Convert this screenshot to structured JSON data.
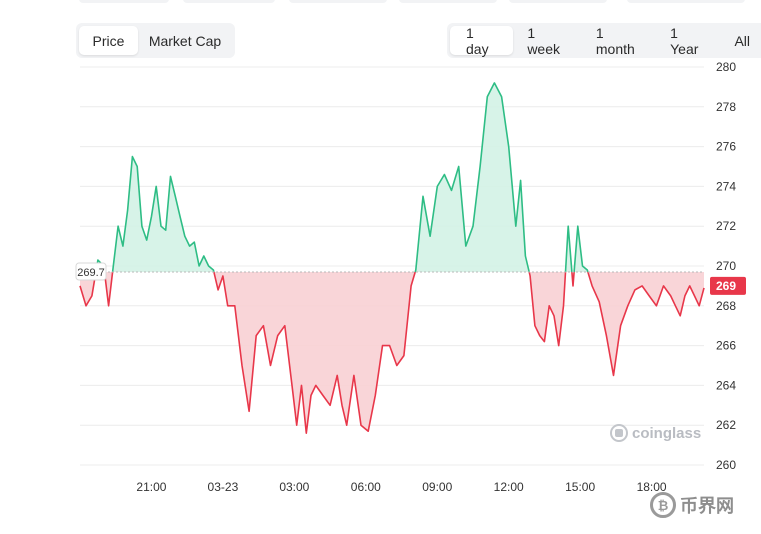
{
  "tabs": {
    "metric": [
      {
        "label": "Price",
        "active": true
      },
      {
        "label": "Market Cap",
        "active": false
      }
    ],
    "range": [
      {
        "label": "1 day",
        "active": true
      },
      {
        "label": "1 week",
        "active": false
      },
      {
        "label": "1 month",
        "active": false
      },
      {
        "label": "1 Year",
        "active": false
      },
      {
        "label": "All",
        "active": false
      }
    ]
  },
  "watermark": "coinglass",
  "brand": "币界网",
  "colors": {
    "up": "#2ebd85",
    "down": "#e8374a",
    "up_fill": "#d3f2e5",
    "down_fill": "#f8d0d4",
    "baseline": "#b8b8b8"
  },
  "chart_data": {
    "type": "area",
    "title": "",
    "xlabel": "",
    "ylabel": "",
    "ylim": [
      260,
      280
    ],
    "yticks": [
      260,
      262,
      264,
      266,
      268,
      270,
      272,
      274,
      276,
      278,
      280
    ],
    "xticks": [
      "21:00",
      "03-23",
      "03:00",
      "06:00",
      "09:00",
      "12:00",
      "15:00",
      "18:00"
    ],
    "xlim": [
      18.0,
      44.2
    ],
    "baseline": 269.7,
    "baseline_label": "269.7",
    "last_value": 269,
    "last_label": "269",
    "grid": true,
    "series": [
      {
        "x": [
          18.0,
          18.25,
          18.5,
          18.75,
          19.0,
          19.2,
          19.4,
          19.6,
          19.8,
          20.0,
          20.2,
          20.4,
          20.6,
          20.8,
          21.0,
          21.2,
          21.4,
          21.6,
          21.8,
          22.0,
          22.2,
          22.4,
          22.6,
          22.8,
          23.0,
          23.2,
          23.4,
          23.6,
          23.8,
          24.0,
          24.2,
          24.5,
          24.8,
          25.1,
          25.4,
          25.7,
          26.0,
          26.3,
          26.6,
          26.9,
          27.1,
          27.3,
          27.5,
          27.7,
          27.9,
          28.2,
          28.5,
          28.8,
          29.0,
          29.2,
          29.5,
          29.8,
          30.1,
          30.4,
          30.7,
          31.0,
          31.3,
          31.6,
          31.9,
          32.1,
          32.4,
          32.7,
          33.0,
          33.3,
          33.6,
          33.9,
          34.2,
          34.5,
          34.8,
          35.1,
          35.4,
          35.7,
          36.0,
          36.3,
          36.5,
          36.7,
          36.9,
          37.1,
          37.3,
          37.5,
          37.7,
          37.9,
          38.1,
          38.3,
          38.5,
          38.7,
          38.9,
          39.1,
          39.3,
          39.5,
          39.8,
          40.1,
          40.4,
          40.7,
          41.0,
          41.3,
          41.6,
          41.9,
          42.2,
          42.5,
          42.8,
          43.0,
          43.2,
          43.4,
          43.6,
          43.8,
          44.0,
          44.2
        ],
        "y": [
          269.0,
          268.0,
          268.5,
          270.3,
          270.0,
          268.0,
          270.0,
          272.0,
          271.0,
          272.8,
          275.5,
          275.0,
          272.0,
          271.3,
          272.5,
          274.0,
          272.0,
          271.8,
          274.5,
          273.5,
          272.5,
          271.5,
          271.0,
          271.2,
          270.0,
          270.5,
          270.0,
          269.8,
          268.8,
          269.5,
          268.0,
          268.0,
          265.0,
          262.7,
          266.5,
          267.0,
          265.0,
          266.5,
          267.0,
          264.0,
          262.0,
          264.0,
          261.6,
          263.5,
          264.0,
          263.5,
          263.0,
          264.5,
          263.0,
          262.0,
          264.5,
          262.0,
          261.7,
          263.5,
          266.0,
          266.0,
          265.0,
          265.5,
          269.0,
          269.8,
          273.5,
          271.5,
          274.0,
          274.6,
          273.8,
          275.0,
          271.0,
          272.0,
          275.0,
          278.5,
          279.2,
          278.5,
          276.0,
          272.0,
          274.3,
          270.5,
          269.5,
          267.0,
          266.5,
          266.2,
          268.0,
          267.5,
          266.0,
          268.0,
          272.0,
          269.0,
          272.0,
          270.0,
          269.8,
          269.0,
          268.2,
          266.5,
          264.5,
          267.0,
          268.0,
          268.8,
          269.0,
          268.5,
          268.0,
          269.0,
          268.5,
          268.0,
          267.5,
          268.5,
          269.0,
          268.5,
          268.0,
          268.9
        ]
      }
    ]
  }
}
